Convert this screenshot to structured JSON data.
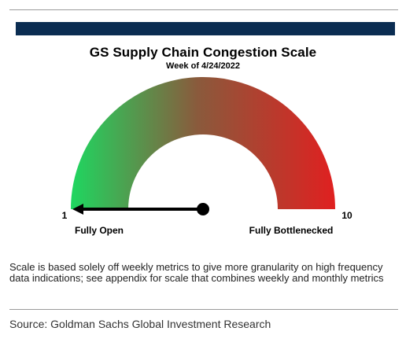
{
  "chart_data": {
    "type": "gauge",
    "title": "GS Supply Chain Congestion Scale",
    "subtitle": "Week of 4/24/2022",
    "min": 1,
    "max": 10,
    "value": 1,
    "min_label": "1",
    "max_label": "10",
    "min_caption": "Fully Open",
    "max_caption": "Fully Bottlenecked",
    "colors": {
      "low": "#1ed760",
      "mid": "#8a5a3c",
      "high": "#e02020",
      "needle": "#000000",
      "banner": "#0b2d52"
    }
  },
  "note": "Scale is based solely off weekly metrics to give more granularity on high frequency data indications; see appendix for scale that combines weekly and monthly metrics",
  "source": "Source: Goldman Sachs Global Investment Research"
}
